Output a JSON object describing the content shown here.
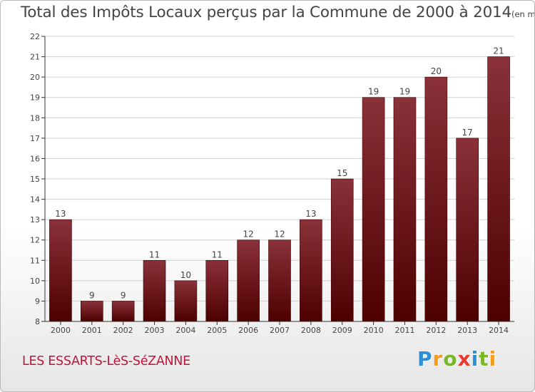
{
  "title": {
    "main": "Total des Impôts Locaux perçus par la Commune de 2000 à 2014",
    "unit": "(en milliers d'€)"
  },
  "commune": "LES ESSARTS-LèS-SéZANNE",
  "brand": {
    "letters": [
      "P",
      "r",
      "o",
      "x",
      "i",
      "t",
      "i"
    ],
    "colors": [
      "#2a8fd8",
      "#f39a1f",
      "#79b829",
      "#e93b2c",
      "#2a8fd8",
      "#79b829",
      "#f39a1f"
    ]
  },
  "colors": {
    "bar_top": "#8a3139",
    "bar_bottom": "#4d0000",
    "grid": "#cfcfcf",
    "axis": "#333333",
    "text": "#444444"
  },
  "chart_data": {
    "type": "bar",
    "categories": [
      "2000",
      "2001",
      "2002",
      "2003",
      "2004",
      "2005",
      "2006",
      "2007",
      "2008",
      "2009",
      "2010",
      "2011",
      "2012",
      "2013",
      "2014"
    ],
    "values": [
      13,
      9,
      9,
      11,
      10,
      11,
      12,
      12,
      13,
      15,
      19,
      19,
      20,
      17,
      21
    ],
    "title": "Total des Impôts Locaux perçus par la Commune de 2000 à 2014",
    "xlabel": "",
    "ylabel": "",
    "ylim": [
      8,
      22
    ],
    "yticks": [
      8,
      9,
      10,
      11,
      12,
      13,
      14,
      15,
      16,
      17,
      18,
      19,
      20,
      21,
      22
    ],
    "grid": true,
    "data_labels": true
  }
}
